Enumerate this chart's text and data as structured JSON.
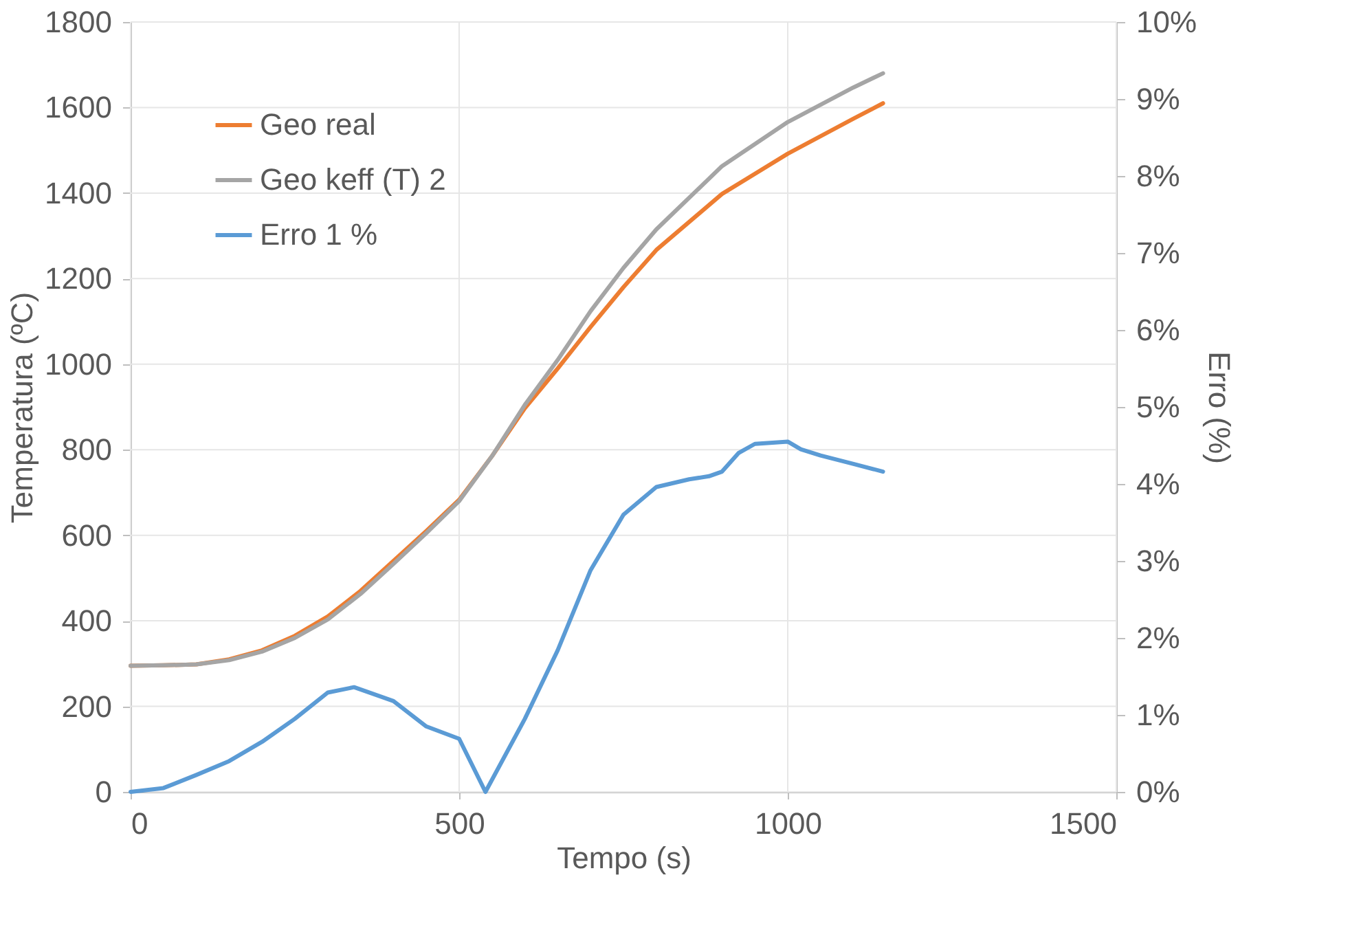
{
  "chart_data": {
    "type": "line",
    "xlabel": "Tempo (s)",
    "ylabel": "Temperatura (ºC)",
    "y2label": "Erro (%)",
    "xlim": [
      0,
      1500
    ],
    "xticks": [
      0,
      500,
      1000,
      1500
    ],
    "ylim": [
      0,
      1800
    ],
    "yticks": [
      0,
      200,
      400,
      600,
      800,
      1000,
      1200,
      1400,
      1600,
      1800
    ],
    "y2lim": [
      0,
      10
    ],
    "y2ticks": [
      {
        "value": 0,
        "label": "0%"
      },
      {
        "value": 1,
        "label": "1%"
      },
      {
        "value": 2,
        "label": "2%"
      },
      {
        "value": 3,
        "label": "3%"
      },
      {
        "value": 4,
        "label": "4%"
      },
      {
        "value": 5,
        "label": "5%"
      },
      {
        "value": 6,
        "label": "6%"
      },
      {
        "value": 7,
        "label": "7%"
      },
      {
        "value": 8,
        "label": "8%"
      },
      {
        "value": 9,
        "label": "9%"
      },
      {
        "value": 10,
        "label": "10%"
      }
    ],
    "grid": true,
    "legend": "top left",
    "marker": "none",
    "line_style": "solid",
    "series": [
      {
        "name": "Geo real",
        "color": "#ed7d31",
        "x": [
          0,
          50,
          100,
          150,
          200,
          250,
          300,
          350,
          400,
          450,
          500,
          550,
          600,
          650,
          700,
          750,
          800,
          900,
          1000,
          1100,
          1145
        ],
        "values": [
          295,
          296,
          298,
          310,
          331,
          365,
          410,
          470,
          540,
          610,
          683,
          785,
          897,
          990,
          1087,
          1180,
          1267,
          1398,
          1492,
          1574,
          1610
        ]
      },
      {
        "name": "Geo keff (T) 2",
        "color": "#a5a5a5",
        "x": [
          0,
          50,
          100,
          150,
          200,
          250,
          300,
          350,
          400,
          450,
          500,
          550,
          600,
          650,
          700,
          750,
          800,
          900,
          1000,
          1100,
          1145
        ],
        "values": [
          295,
          296,
          298,
          308,
          328,
          360,
          403,
          463,
          533,
          605,
          680,
          785,
          905,
          1010,
          1124,
          1225,
          1315,
          1463,
          1566,
          1647,
          1680
        ]
      },
      {
        "name": "Erro 1 %",
        "color": "#5b9bd5",
        "axis": "y2",
        "x": [
          0,
          50,
          100,
          150,
          200,
          250,
          300,
          340,
          400,
          450,
          500,
          540,
          600,
          650,
          700,
          750,
          800,
          850,
          880,
          900,
          925,
          950,
          1000,
          1020,
          1050,
          1100,
          1145
        ],
        "values": [
          0,
          0.05,
          0.22,
          0.4,
          0.65,
          0.95,
          1.29,
          1.36,
          1.18,
          0.85,
          0.69,
          0,
          0.95,
          1.84,
          2.88,
          3.6,
          3.96,
          4.06,
          4.1,
          4.16,
          4.4,
          4.52,
          4.55,
          4.45,
          4.37,
          4.26,
          4.16
        ]
      }
    ]
  }
}
